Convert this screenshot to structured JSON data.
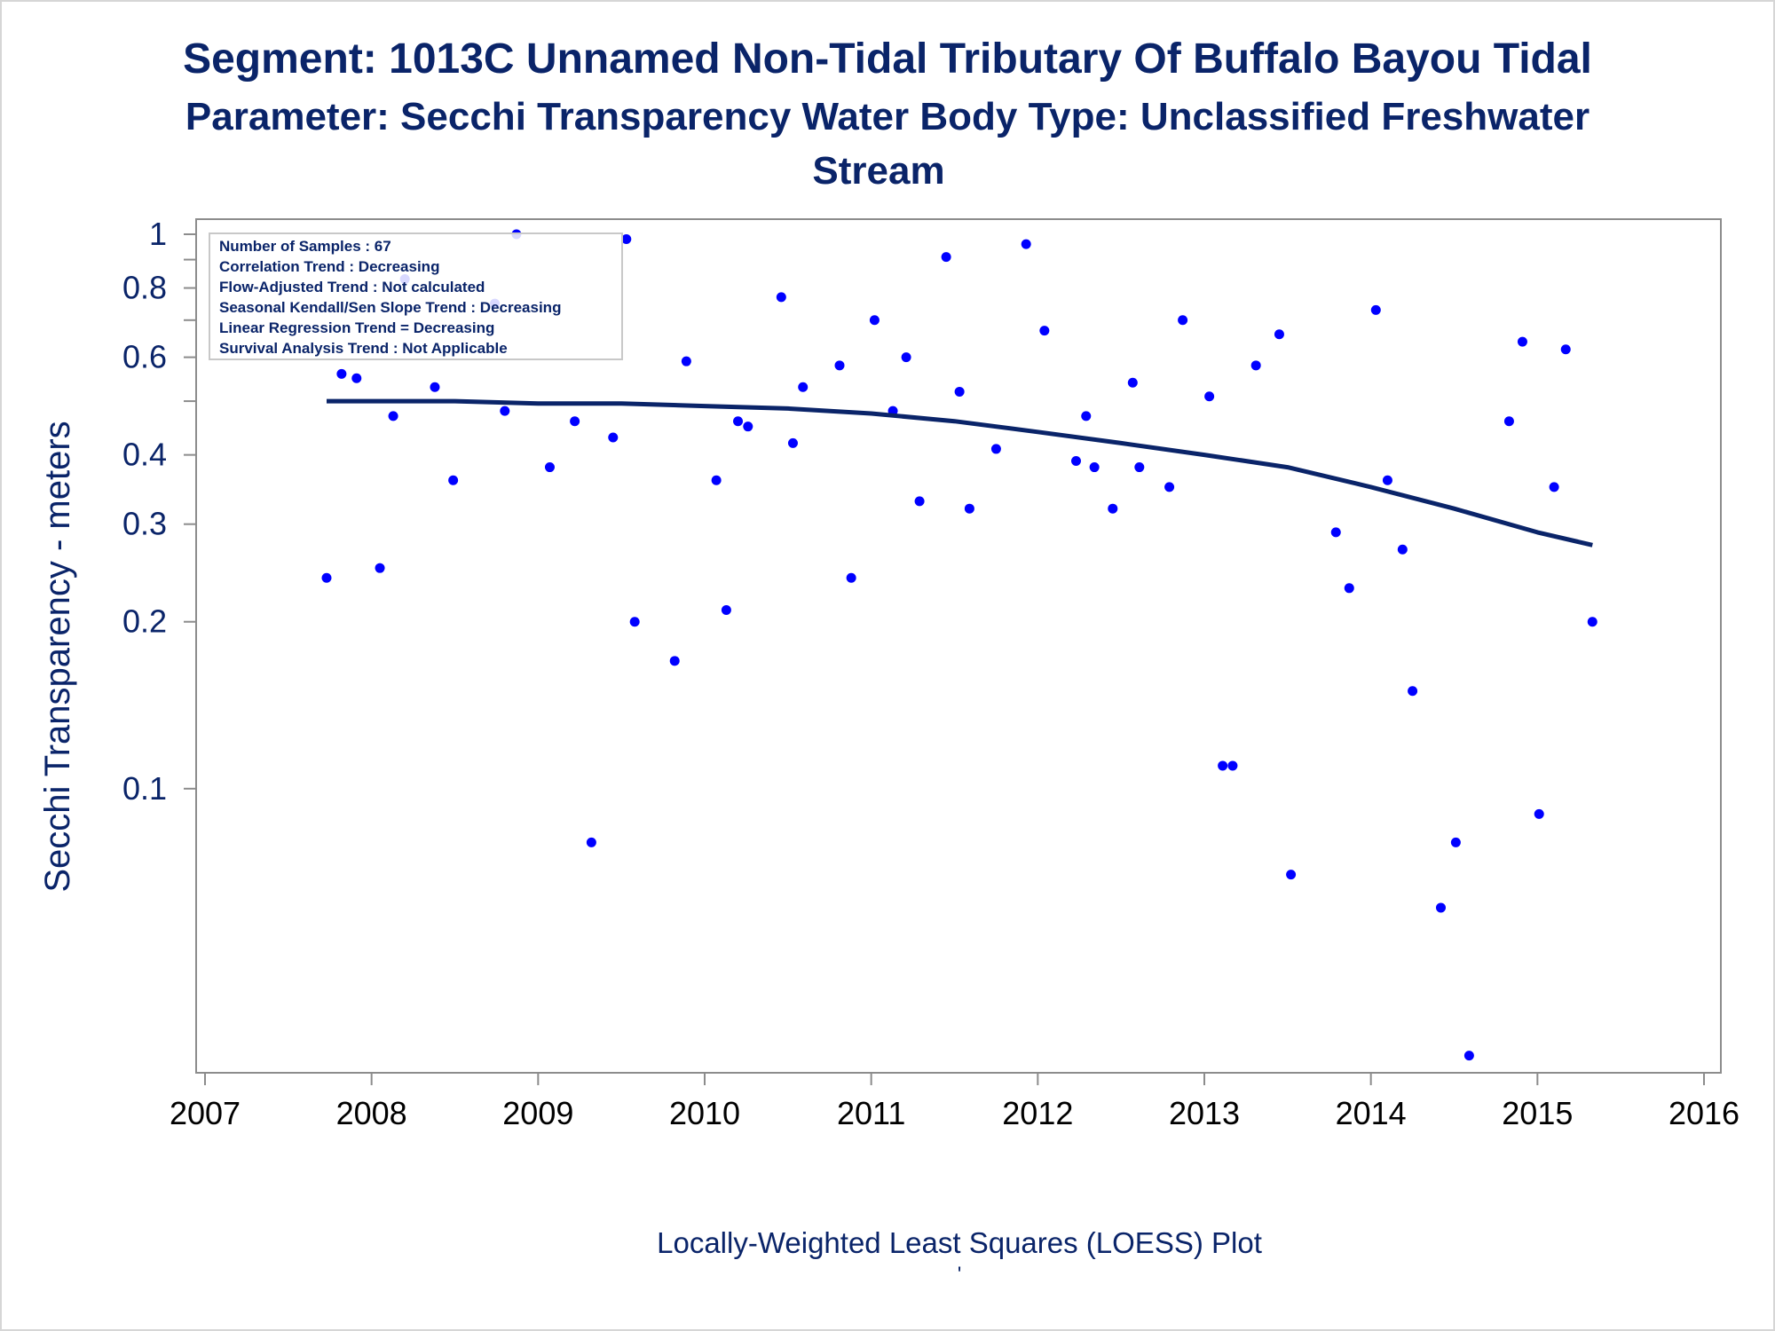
{
  "title": {
    "line1": "Segment: 1013C  Unnamed Non-Tidal Tributary Of Buffalo Bayou Tidal",
    "line2": "Parameter: Secchi Transparency   Water Body Type: Unclassified Freshwater",
    "line3": "Stream"
  },
  "info_box": {
    "lines": [
      "Number of Samples : 67",
      "Correlation Trend : Decreasing",
      "Flow-Adjusted Trend : Not calculated",
      "Seasonal Kendall/Sen Slope Trend : Decreasing",
      "Linear Regression Trend = Decreasing",
      "Survival Analysis Trend : Not Applicable"
    ]
  },
  "footer": {
    "caption": "Locally-Weighted Least Squares (LOESS) Plot",
    "mark": "'"
  },
  "colors": {
    "text": "#0a2469",
    "points": "#0000ff",
    "loess": "#0a2469",
    "axis": "#8c8c8c"
  },
  "chart_data": {
    "type": "scatter",
    "title": "Segment: 1013C  Unnamed Non-Tidal Tributary Of Buffalo Bayou Tidal",
    "subtitle": "Parameter: Secchi Transparency   Water Body Type: Unclassified Freshwater Stream",
    "xlabel": "",
    "ylabel": "Secchi Transparency - meters",
    "xlim": [
      2007,
      2016
    ],
    "ylim": [
      0.032,
      1.0
    ],
    "yscale": "log",
    "grid": false,
    "x_ticks": [
      "2007",
      "2008",
      "2009",
      "2010",
      "2011",
      "2012",
      "2013",
      "2014",
      "2015",
      "2016"
    ],
    "y_ticks": [
      {
        "value": 1,
        "label": "1"
      },
      {
        "value": 0.9,
        "label": ""
      },
      {
        "value": 0.8,
        "label": "0.8"
      },
      {
        "value": 0.7,
        "label": ""
      },
      {
        "value": 0.6,
        "label": "0.6"
      },
      {
        "value": 0.5,
        "label": ""
      },
      {
        "value": 0.4,
        "label": "0.4"
      },
      {
        "value": 0.3,
        "label": "0.3"
      },
      {
        "value": 0.2,
        "label": "0.2"
      },
      {
        "value": 0.1,
        "label": "0.1"
      }
    ],
    "points": {
      "x": [
        2007.73,
        2007.82,
        2007.91,
        2008.05,
        2008.13,
        2008.2,
        2008.38,
        2008.49,
        2008.74,
        2008.8,
        2008.87,
        2009.07,
        2009.22,
        2009.32,
        2009.45,
        2009.53,
        2009.58,
        2009.82,
        2009.89,
        2010.07,
        2010.13,
        2010.2,
        2010.26,
        2010.46,
        2010.53,
        2010.59,
        2010.81,
        2010.88,
        2011.02,
        2011.13,
        2011.21,
        2011.29,
        2011.45,
        2011.53,
        2011.59,
        2011.75,
        2011.93,
        2012.04,
        2012.23,
        2012.29,
        2012.34,
        2012.45,
        2012.57,
        2012.61,
        2012.79,
        2012.87,
        2013.03,
        2013.11,
        2013.17,
        2013.31,
        2013.45,
        2013.52,
        2013.79,
        2013.87,
        2014.03,
        2014.1,
        2014.19,
        2014.25,
        2014.42,
        2014.51,
        2014.59,
        2014.83,
        2014.91,
        2015.01,
        2015.1,
        2015.17,
        2015.33
      ],
      "y": [
        0.24,
        0.56,
        0.55,
        0.25,
        0.47,
        0.83,
        0.53,
        0.36,
        0.75,
        0.48,
        1.0,
        0.38,
        0.46,
        0.08,
        0.43,
        0.98,
        0.2,
        0.17,
        0.59,
        0.36,
        0.21,
        0.46,
        0.45,
        0.77,
        0.42,
        0.53,
        0.58,
        0.24,
        0.7,
        0.48,
        0.6,
        0.33,
        0.91,
        0.52,
        0.32,
        0.41,
        0.96,
        0.67,
        0.39,
        0.47,
        0.38,
        0.32,
        0.54,
        0.38,
        0.35,
        0.7,
        0.51,
        0.11,
        0.11,
        0.58,
        0.66,
        0.07,
        0.29,
        0.23,
        0.73,
        0.36,
        0.27,
        0.15,
        0.061,
        0.08,
        0.033,
        0.46,
        0.64,
        0.09,
        0.35,
        0.62,
        0.2
      ]
    },
    "loess": {
      "x": [
        2007.73,
        2008.0,
        2008.5,
        2009.0,
        2009.5,
        2010.0,
        2010.5,
        2011.0,
        2011.5,
        2012.0,
        2012.5,
        2013.0,
        2013.5,
        2014.0,
        2014.5,
        2015.0,
        2015.33
      ],
      "y": [
        0.5,
        0.5,
        0.5,
        0.495,
        0.495,
        0.49,
        0.485,
        0.475,
        0.46,
        0.44,
        0.42,
        0.4,
        0.38,
        0.35,
        0.32,
        0.29,
        0.275
      ]
    }
  }
}
